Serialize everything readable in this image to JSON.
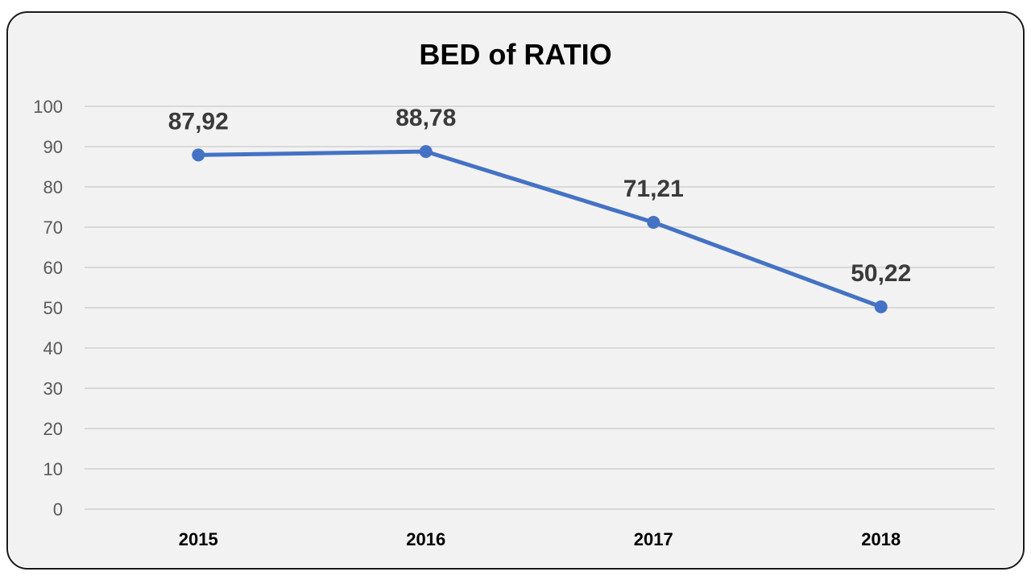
{
  "chart_data": {
    "type": "line",
    "title": "BED of RATIO",
    "xlabel": "",
    "ylabel": "",
    "categories": [
      "2015",
      "2016",
      "2017",
      "2018"
    ],
    "series": [
      {
        "values": [
          87.92,
          88.78,
          71.21,
          50.22
        ],
        "data_labels": [
          "87,92",
          "88,78",
          "71,21",
          "50,22"
        ],
        "color": "#4472c4"
      }
    ],
    "ylim": [
      0,
      100
    ],
    "yticks": [
      "0",
      "10",
      "20",
      "30",
      "40",
      "50",
      "60",
      "70",
      "80",
      "90",
      "100"
    ],
    "grid": true,
    "legend": "none"
  }
}
